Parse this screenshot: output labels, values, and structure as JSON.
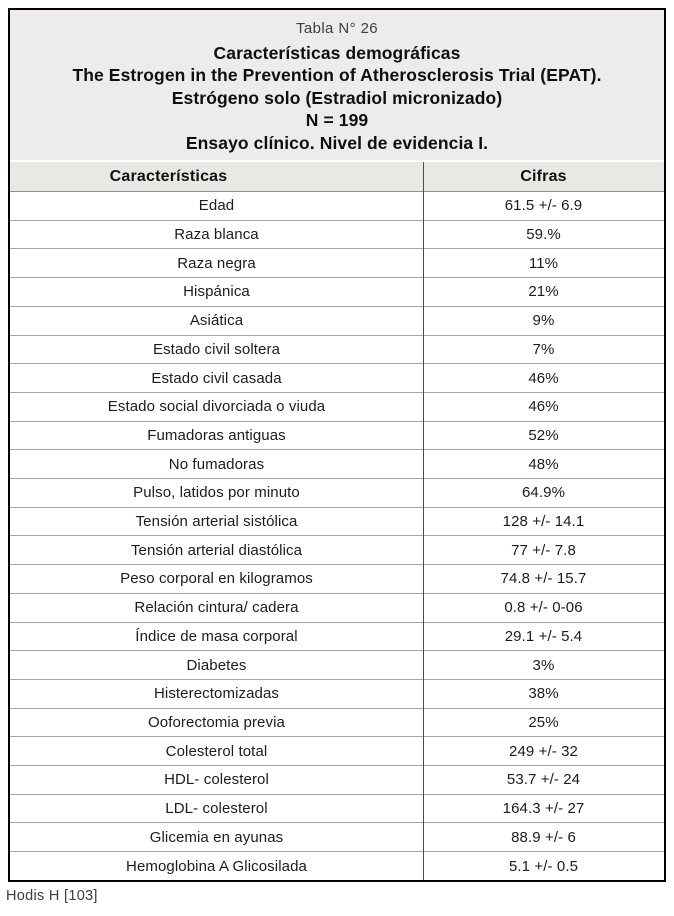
{
  "colors": {
    "outer_border": "#000000",
    "title_background": "#edecea",
    "header_row_background": "#e9e8e5",
    "column_divider": "#4d4d4d",
    "row_separator": "#a3a3a3",
    "text": "#1c1c1c"
  },
  "header": {
    "table_label": "Tabla N° 26",
    "title_lines": [
      "Características demográficas",
      "The Estrogen in the Prevention of Atherosclerosis Trial (EPAT).",
      "Estrógeno solo (Estradiol micronizado)",
      "N = 199",
      "Ensayo clínico. Nivel de evidencia I."
    ]
  },
  "table": {
    "columns": [
      "Características",
      "Cifras"
    ],
    "rows": [
      {
        "label": "Edad",
        "value": "61.5 +/- 6.9"
      },
      {
        "label": "Raza blanca",
        "value": "59.%"
      },
      {
        "label": "Raza negra",
        "value": "11%"
      },
      {
        "label": "Hispánica",
        "value": "21%"
      },
      {
        "label": "Asiática",
        "value": "9%"
      },
      {
        "label": "Estado civil soltera",
        "value": "7%"
      },
      {
        "label": "Estado civil casada",
        "value": "46%"
      },
      {
        "label": "Estado social divorciada o viuda",
        "value": "46%"
      },
      {
        "label": "Fumadoras antiguas",
        "value": "52%"
      },
      {
        "label": "No fumadoras",
        "value": "48%"
      },
      {
        "label": "Pulso, latidos por minuto",
        "value": "64.9%"
      },
      {
        "label": "Tensión arterial sistólica",
        "value": "128 +/- 14.1"
      },
      {
        "label": "Tensión arterial diastólica",
        "value": "77 +/- 7.8"
      },
      {
        "label": "Peso corporal en kilogramos",
        "value": "74.8 +/- 15.7"
      },
      {
        "label": "Relación cintura/ cadera",
        "value": "0.8 +/- 0-06"
      },
      {
        "label": "Índice de masa corporal",
        "value": "29.1 +/- 5.4"
      },
      {
        "label": "Diabetes",
        "value": "3%"
      },
      {
        "label": "Histerectomizadas",
        "value": "38%"
      },
      {
        "label": "Ooforectomia previa",
        "value": "25%"
      },
      {
        "label": "Colesterol total",
        "value": "249 +/- 32"
      },
      {
        "label": "HDL- colesterol",
        "value": "53.7 +/- 24"
      },
      {
        "label": "LDL- colesterol",
        "value": "164.3 +/- 27"
      },
      {
        "label": "Glicemia en ayunas",
        "value": "88.9 +/- 6"
      },
      {
        "label": "Hemoglobina A Glicosilada",
        "value": "5.1 +/- 0.5"
      }
    ]
  },
  "footer": {
    "citation": "Hodis H [103]"
  }
}
